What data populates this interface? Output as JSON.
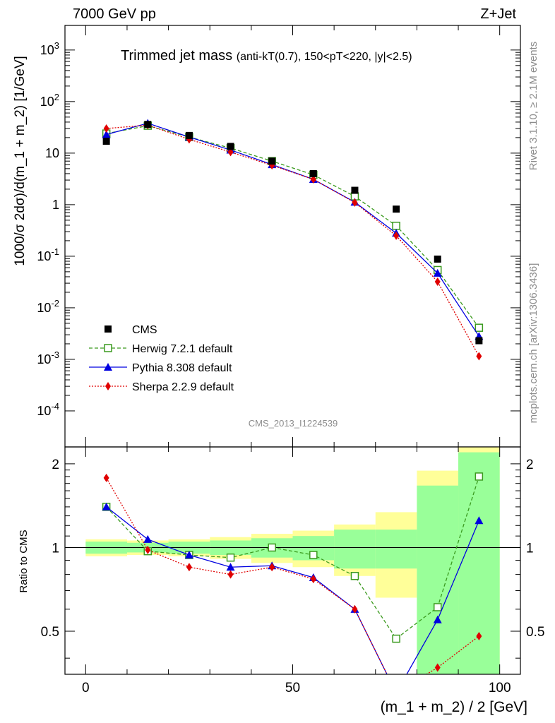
{
  "header": {
    "energy_label": "7000 GeV pp",
    "process_label": "Z+Jet",
    "rivet_label": "Rivet 3.1.10, ≥ 2.1M events",
    "mcplots_label": "mcplots.cern.ch [arXiv:1306.3436]",
    "analysis_label": "CMS_2013_I1224539"
  },
  "chart_data": [
    {
      "type": "line",
      "title": "Trimmed jet mass",
      "subtitle": "(anti-kT(0.7), 150<pT<220, |y|<2.5)",
      "xlabel": "(m_1 + m_2) / 2 [GeV]",
      "ylabel": "1000/σ 2dσ)/d(m_1 + m_2) [1/GeV]",
      "yscale": "log",
      "xlim": [
        -5,
        105
      ],
      "ylim": [
        2e-05,
        3000
      ],
      "legend_position": "bottom-left",
      "x": [
        5,
        15,
        25,
        35,
        45,
        55,
        65,
        75,
        85,
        95
      ],
      "series": [
        {
          "name": "CMS",
          "marker": "square",
          "color": "#000000",
          "values": [
            17,
            36,
            22,
            13.5,
            7,
            4,
            1.9,
            0.82,
            0.088,
            0.0023
          ]
        },
        {
          "name": "Herwig 7.2.1 default",
          "marker": "open-square",
          "line": "dashed",
          "color": "#3a9a1e",
          "values": [
            24,
            34,
            20.5,
            12.5,
            7,
            3.8,
            1.45,
            0.39,
            0.054,
            0.0041
          ]
        },
        {
          "name": "Pythia 8.308 default",
          "marker": "triangle",
          "line": "solid",
          "color": "#0000e0",
          "values": [
            23,
            38,
            20.5,
            11.5,
            6,
            3.1,
            1.12,
            0.28,
            0.047,
            0.0028
          ]
        },
        {
          "name": "Sherpa 2.2.9 default",
          "marker": "diamond",
          "line": "dotted",
          "color": "#e00000",
          "values": [
            30,
            35,
            18.5,
            10.5,
            5.8,
            3.1,
            1.1,
            0.25,
            0.032,
            0.00115
          ]
        }
      ]
    },
    {
      "type": "line",
      "ylabel": "Ratio to CMS",
      "xlabel": "(m_1 + m_2) / 2 [GeV]",
      "xlim": [
        -5,
        105
      ],
      "ylim": [
        0.35,
        2.3
      ],
      "xticks": [
        0,
        50,
        100
      ],
      "yticks": [
        0.5,
        1,
        2
      ],
      "bins": [
        0,
        10,
        20,
        30,
        40,
        50,
        60,
        70,
        80,
        90,
        100
      ],
      "band_green": [
        [
          0.95,
          1.05
        ],
        [
          0.96,
          1.04
        ],
        [
          0.95,
          1.05
        ],
        [
          0.94,
          1.06
        ],
        [
          0.92,
          1.08
        ],
        [
          0.9,
          1.1
        ],
        [
          0.84,
          1.16
        ],
        [
          0.84,
          1.16
        ],
        [
          0.35,
          1.67
        ],
        [
          0.35,
          2.2
        ]
      ],
      "band_yellow": [
        [
          0.93,
          1.07
        ],
        [
          0.94,
          1.06
        ],
        [
          0.93,
          1.07
        ],
        [
          0.91,
          1.09
        ],
        [
          0.88,
          1.12
        ],
        [
          0.85,
          1.15
        ],
        [
          0.79,
          1.21
        ],
        [
          0.66,
          1.34
        ],
        [
          0.35,
          1.89
        ],
        [
          0.35,
          2.3
        ]
      ],
      "x": [
        5,
        15,
        25,
        35,
        45,
        55,
        65,
        75,
        85,
        95
      ],
      "series": [
        {
          "name": "Herwig 7.2.1 default",
          "color": "#3a9a1e",
          "values": [
            1.4,
            0.97,
            0.94,
            0.92,
            1.0,
            0.94,
            0.79,
            0.47,
            0.61,
            1.8
          ]
        },
        {
          "name": "Pythia 8.308 default",
          "color": "#0000e0",
          "values": [
            1.4,
            1.07,
            0.94,
            0.85,
            0.86,
            0.78,
            0.6,
            0.3,
            0.55,
            1.25
          ]
        },
        {
          "name": "Sherpa 2.2.9 default",
          "color": "#e00000",
          "values": [
            1.78,
            0.98,
            0.85,
            0.8,
            0.85,
            0.77,
            0.6,
            0.3,
            0.37,
            0.48
          ]
        }
      ]
    }
  ]
}
